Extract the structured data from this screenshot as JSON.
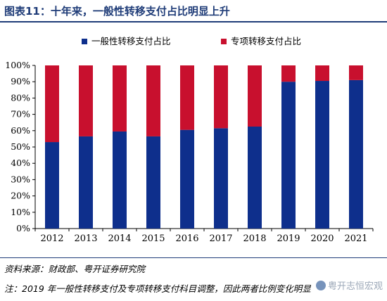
{
  "figure": {
    "title": "图表11：十年来，一般性转移支付占比明显上升",
    "source": "资料来源：财政部、粤开证券研究院",
    "note": "注：2019 年一般性转移支付及专项转移支付科目调整，因此两者比例变化明显",
    "watermark": "粤开志恒宏观"
  },
  "colors": {
    "general": "#0e2f8c",
    "special": "#c8102e",
    "text": "#000000",
    "axis": "#000000",
    "title": "#1f3c78"
  },
  "chart_data": {
    "type": "bar",
    "stacked": true,
    "categories": [
      "2012",
      "2013",
      "2014",
      "2015",
      "2016",
      "2017",
      "2018",
      "2019",
      "2020",
      "2021"
    ],
    "series": [
      {
        "name": "一般性转移支付占比",
        "values": [
          53,
          56.5,
          59.5,
          56.5,
          60.5,
          61.5,
          62.5,
          90,
          90.5,
          91
        ]
      },
      {
        "name": "专项转移支付占比",
        "values": [
          47,
          43.5,
          40.5,
          43.5,
          39.5,
          38.5,
          37.5,
          10,
          9.5,
          9
        ]
      }
    ],
    "ylim": [
      0,
      100
    ],
    "yticks": [
      "0%",
      "10%",
      "20%",
      "30%",
      "40%",
      "50%",
      "60%",
      "70%",
      "80%",
      "90%",
      "100%"
    ],
    "legend_position": "top-center",
    "grid": false
  }
}
